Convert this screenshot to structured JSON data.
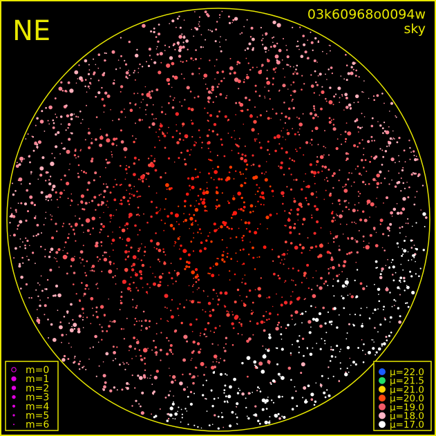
{
  "corner_label": "NE",
  "image_id": "03k60968o0094w",
  "image_type": "sky",
  "frame_color": "#e8e800",
  "magnitude_legend": {
    "marker_color": "#e000e0",
    "items": [
      "m=0",
      "m=1",
      "m=2",
      "m=3",
      "m=4",
      "m=5",
      "m=6"
    ]
  },
  "brightness_legend": {
    "items": [
      {
        "label": "μ=22.0",
        "color": "#1a5cff"
      },
      {
        "label": "μ=21.5",
        "color": "#22dd66"
      },
      {
        "label": "μ=21.0",
        "color": "#ffd400"
      },
      {
        "label": "μ=20.0",
        "color": "#ff4a10"
      },
      {
        "label": "μ=19.0",
        "color": "#f05a68"
      },
      {
        "label": "μ=18.0",
        "color": "#ffb4c4"
      },
      {
        "label": "μ=17.0",
        "color": "#ffffff"
      }
    ]
  }
}
